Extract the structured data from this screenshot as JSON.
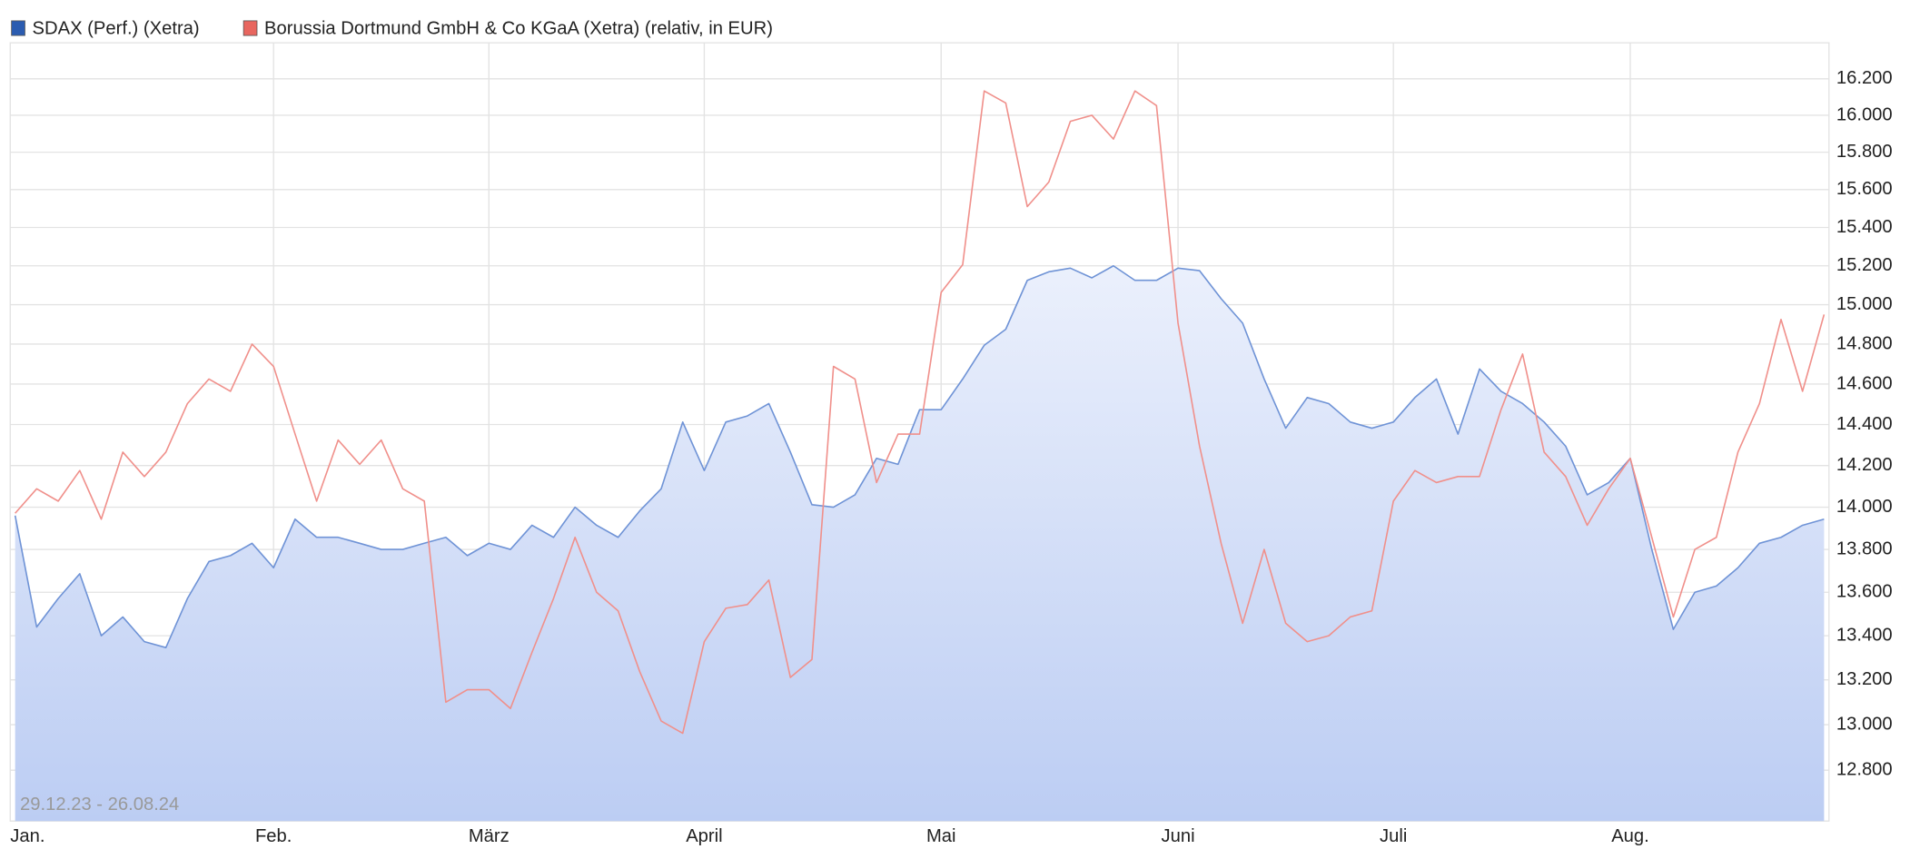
{
  "chart_data": {
    "type": "line",
    "annotation": "29.12.23 - 26.08.24",
    "log_scale": true,
    "grid": true,
    "legend": "top-left",
    "y_axis_side": "right",
    "ylim": [
      12580,
      16400
    ],
    "yticks": [
      {
        "value": 12800,
        "label": "12.800"
      },
      {
        "value": 13000,
        "label": "13.000"
      },
      {
        "value": 13200,
        "label": "13.200"
      },
      {
        "value": 13400,
        "label": "13.400"
      },
      {
        "value": 13600,
        "label": "13.600"
      },
      {
        "value": 13800,
        "label": "13.800"
      },
      {
        "value": 14000,
        "label": "14.000"
      },
      {
        "value": 14200,
        "label": "14.200"
      },
      {
        "value": 14400,
        "label": "14.400"
      },
      {
        "value": 14600,
        "label": "14.600"
      },
      {
        "value": 14800,
        "label": "14.800"
      },
      {
        "value": 15000,
        "label": "15.000"
      },
      {
        "value": 15200,
        "label": "15.200"
      },
      {
        "value": 15400,
        "label": "15.400"
      },
      {
        "value": 15600,
        "label": "15.600"
      },
      {
        "value": 15800,
        "label": "15.800"
      },
      {
        "value": 16000,
        "label": "16.000"
      },
      {
        "value": 16200,
        "label": "16.200"
      }
    ],
    "categories": [
      "Jan.",
      null,
      null,
      null,
      null,
      null,
      null,
      null,
      null,
      null,
      null,
      null,
      "Feb.",
      null,
      null,
      null,
      null,
      null,
      null,
      null,
      null,
      null,
      "März",
      null,
      null,
      null,
      null,
      null,
      null,
      null,
      null,
      null,
      "April",
      null,
      null,
      null,
      null,
      null,
      null,
      null,
      null,
      null,
      null,
      "Mai",
      null,
      null,
      null,
      null,
      null,
      null,
      null,
      null,
      null,
      null,
      "Juni",
      null,
      null,
      null,
      null,
      null,
      null,
      null,
      null,
      null,
      "Juli",
      null,
      null,
      null,
      null,
      null,
      null,
      null,
      null,
      null,
      null,
      "Aug.",
      null,
      null,
      null,
      null,
      null,
      null,
      null,
      null,
      null
    ],
    "series": [
      {
        "name": "SDAX (Perf.) (Xetra)",
        "color": "#2b5cb0",
        "line_color": "#6f93d6",
        "area": true,
        "values": [
          13960,
          13440,
          13571,
          13686,
          13400,
          13486,
          13373,
          13346,
          13571,
          13743,
          13771,
          13829,
          13714,
          13943,
          13857,
          13857,
          13829,
          13800,
          13800,
          13829,
          13857,
          13771,
          13829,
          13800,
          13914,
          13857,
          14000,
          13914,
          13857,
          13982,
          14088,
          14412,
          14176,
          14412,
          14442,
          14503,
          14265,
          14012,
          14000,
          14059,
          14235,
          14206,
          14473,
          14473,
          14625,
          14794,
          14875,
          15125,
          15169,
          15188,
          15138,
          15200,
          15125,
          15125,
          15188,
          15175,
          15031,
          14906,
          14625,
          14382,
          14533,
          14503,
          14412,
          14382,
          14412,
          14533,
          14625,
          14353,
          14675,
          14564,
          14503,
          14412,
          14294,
          14059,
          14118,
          14235,
          13800,
          13429,
          13600,
          13629,
          13714,
          13829,
          13857,
          13914,
          13943
        ]
      },
      {
        "name": "Borussia Dortmund GmbH & Co KGaA (Xetra) (relativ, in EUR)",
        "color": "#e8665f",
        "line_color": "#f0908b",
        "area": false,
        "values": [
          13971,
          14088,
          14029,
          14176,
          13943,
          14265,
          14147,
          14265,
          14503,
          14625,
          14564,
          14800,
          14688,
          14353,
          14029,
          14324,
          14206,
          14324,
          14088,
          14029,
          13100,
          13156,
          13156,
          13072,
          13324,
          13571,
          13857,
          13600,
          13514,
          13238,
          13016,
          12962,
          13373,
          13526,
          13543,
          13657,
          13211,
          13292,
          14688,
          14625,
          14118,
          14353,
          14353,
          15063,
          15206,
          16133,
          16067,
          15510,
          15640,
          15967,
          16000,
          15871,
          16133,
          16053,
          14906,
          14294,
          13829,
          13457,
          13800,
          13457,
          13373,
          13400,
          13486,
          13514,
          14029,
          14176,
          14118,
          14147,
          14147,
          14473,
          14750,
          14265,
          14147,
          13914,
          14088,
          14235,
          13857,
          13486,
          13800,
          13857,
          14265,
          14503,
          14925,
          14564,
          14950
        ]
      }
    ]
  }
}
